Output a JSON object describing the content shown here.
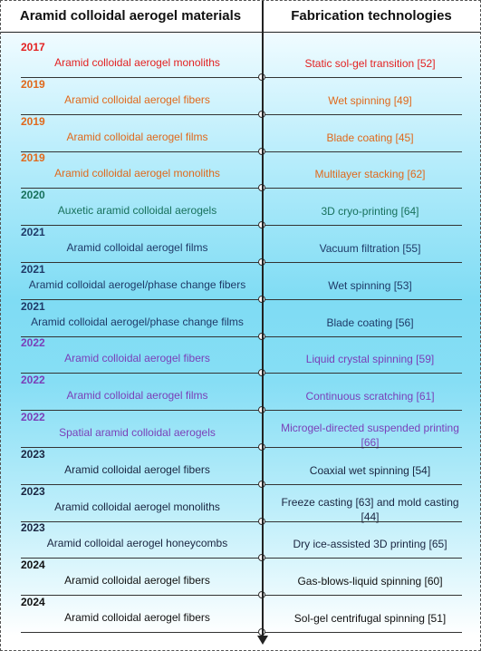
{
  "header": {
    "left": "Aramid colloidal aerogel materials",
    "right": "Fabrication technologies"
  },
  "rows": [
    {
      "year": "2017",
      "material": "Aramid colloidal aerogel monoliths",
      "technology": "Static sol-gel transition [52]",
      "color": "#e32121"
    },
    {
      "year": "2019",
      "material": "Aramid colloidal aerogel fibers",
      "technology": "Wet spinning [49]",
      "color": "#e0691c"
    },
    {
      "year": "2019",
      "material": "Aramid colloidal aerogel films",
      "technology": "Blade coating [45]",
      "color": "#e0691c"
    },
    {
      "year": "2019",
      "material": "Aramid colloidal aerogel monoliths",
      "technology": "Multilayer stacking [62]",
      "color": "#e0691c"
    },
    {
      "year": "2020",
      "material": "Auxetic aramid colloidal aerogels",
      "technology": "3D cryo-printing [64]",
      "color": "#17705b"
    },
    {
      "year": "2021",
      "material": "Aramid colloidal aerogel films",
      "technology": "Vacuum filtration [55]",
      "color": "#1f3a68"
    },
    {
      "year": "2021",
      "material": "Aramid colloidal aerogel/phase change fibers",
      "technology": "Wet spinning [53]",
      "color": "#1f3a68"
    },
    {
      "year": "2021",
      "material": "Aramid colloidal aerogel/phase change films",
      "technology": "Blade coating [56]",
      "color": "#1f3a68"
    },
    {
      "year": "2022",
      "material": "Aramid colloidal aerogel fibers",
      "technology": "Liquid crystal spinning [59]",
      "color": "#7a3fb8"
    },
    {
      "year": "2022",
      "material": "Aramid colloidal aerogel films",
      "technology": "Continuous scratching [61]",
      "color": "#7a3fb8"
    },
    {
      "year": "2022",
      "material": "Spatial aramid colloidal aerogels",
      "technology": "Microgel-directed suspended printing [66]",
      "color": "#7a3fb8"
    },
    {
      "year": "2023",
      "material": "Aramid colloidal aerogel fibers",
      "technology": "Coaxial wet spinning [54]",
      "color": "#1a2540"
    },
    {
      "year": "2023",
      "material": "Aramid colloidal aerogel monoliths",
      "technology": "Freeze casting [63] and mold casting [44]",
      "color": "#1a2540"
    },
    {
      "year": "2023",
      "material": "Aramid colloidal aerogel honeycombs",
      "technology": "Dry ice-assisted 3D printing [65]",
      "color": "#1a2540"
    },
    {
      "year": "2024",
      "material": "Aramid colloidal aerogel fibers",
      "technology": "Gas-blows-liquid spinning [60]",
      "color": "#111111"
    },
    {
      "year": "2024",
      "material": "Aramid colloidal aerogel fibers",
      "technology": "Sol-gel centrifugal spinning [51]",
      "color": "#111111"
    }
  ]
}
